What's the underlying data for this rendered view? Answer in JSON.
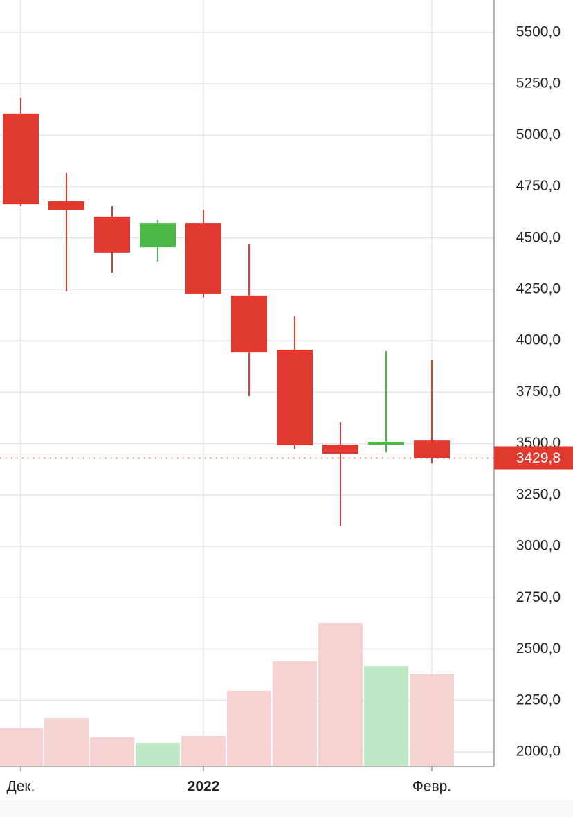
{
  "chart_data": {
    "type": "candlestick",
    "categories": [
      "Дек.",
      null,
      null,
      null,
      "2022",
      null,
      null,
      null,
      null,
      "Февр."
    ],
    "open": [
      5106,
      4678,
      4604,
      4455,
      4573,
      4220,
      3957,
      3495,
      3495,
      3515
    ],
    "high": [
      5183,
      4816,
      4654,
      4587,
      4637,
      4472,
      4119,
      3603,
      3950,
      3906
    ],
    "low": [
      4654,
      4240,
      4331,
      4385,
      4210,
      3731,
      3475,
      3098,
      3458,
      3404
    ],
    "close": [
      4664,
      4634,
      4429,
      4573,
      4230,
      3943,
      3492,
      3451,
      3509,
      3429.8
    ],
    "volume": [
      5.5,
      7.0,
      4.2,
      3.4,
      4.4,
      10.9,
      15.2,
      20.7,
      14.5,
      13.3
    ],
    "volume_lim": [
      0,
      110.7
    ],
    "up_color": "#4db848",
    "down_color": "#e0392f",
    "up_volume_color": "#bfe8c6",
    "down_volume_color": "#f5d3d3",
    "ylim": [
      1929,
      5658
    ],
    "yticks": [
      {
        "value": 2000,
        "label": "2000,0"
      },
      {
        "value": 2250,
        "label": "2250,0"
      },
      {
        "value": 2500,
        "label": "2500,0"
      },
      {
        "value": 2750,
        "label": "2750,0"
      },
      {
        "value": 3000,
        "label": "3000,0"
      },
      {
        "value": 3250,
        "label": "3250,0"
      },
      {
        "value": 3500,
        "label": "3500,0"
      },
      {
        "value": 3750,
        "label": "3750,0"
      },
      {
        "value": 4000,
        "label": "4000,0"
      },
      {
        "value": 4250,
        "label": "4250,0"
      },
      {
        "value": 4500,
        "label": "4500,0"
      },
      {
        "value": 4750,
        "label": "4750,0"
      },
      {
        "value": 5000,
        "label": "5000,0"
      },
      {
        "value": 5250,
        "label": "5250,0"
      },
      {
        "value": 5500,
        "label": "5500,0"
      }
    ],
    "last_price": {
      "value": 3429.8,
      "label": "3429,8"
    },
    "grid": true
  }
}
